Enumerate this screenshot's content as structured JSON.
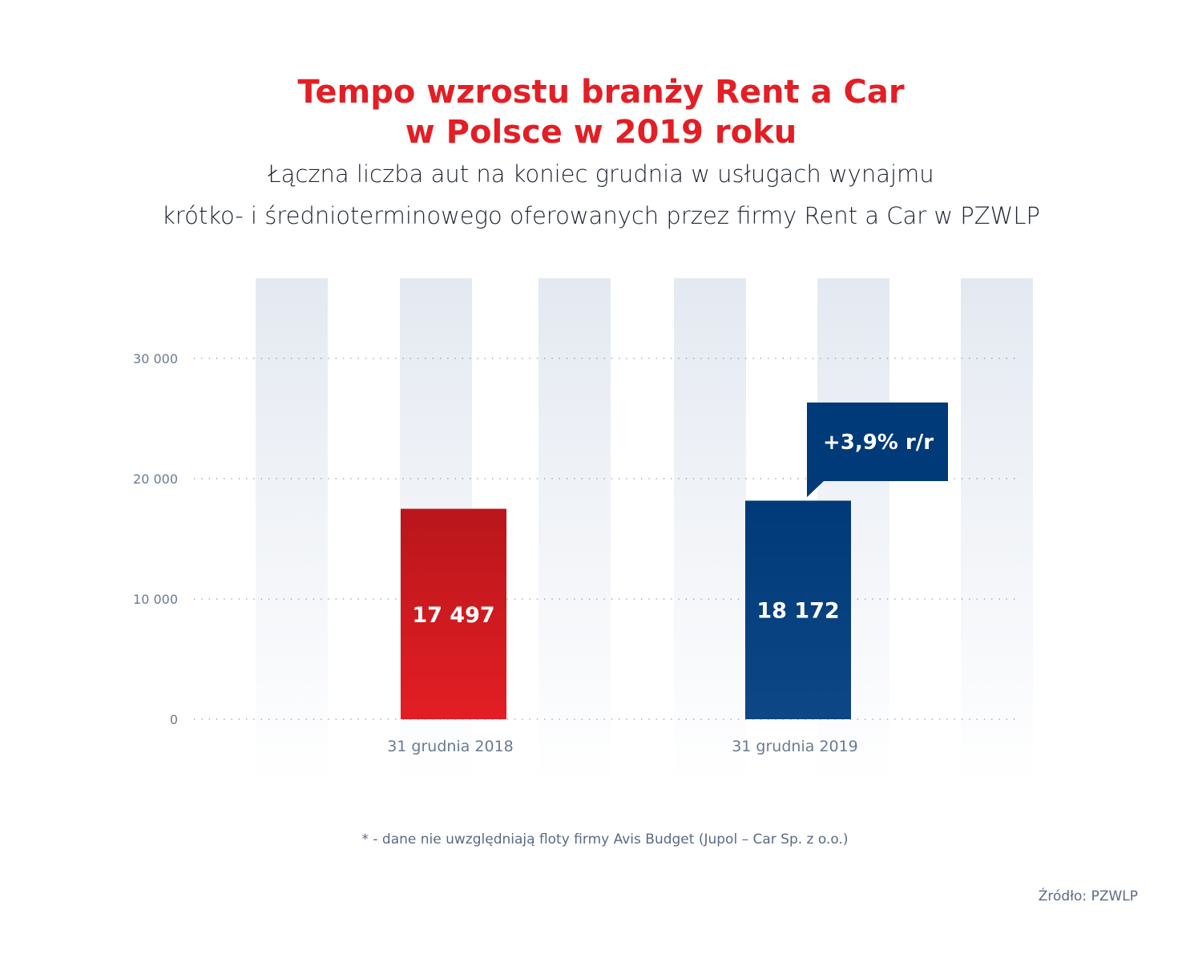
{
  "chart_data": {
    "type": "bar",
    "title_line1": "Tempo wzrostu branży Rent a Car",
    "title_line2": "w Polsce w 2019 roku",
    "subtitle_line1": "Łączna liczba aut na koniec grudnia w usługach wynajmu",
    "subtitle_line2": "krótko- i średnioterminowego oferowanych przez firmy Rent a Car w PZWLP",
    "categories": [
      "31 grudnia 2018",
      "31 grudnia 2019"
    ],
    "values": [
      17497,
      18172
    ],
    "value_labels": [
      "17 497",
      "18 172"
    ],
    "colors": [
      "#d71c22",
      "#003a78"
    ],
    "yticks": [
      0,
      10000,
      20000,
      30000
    ],
    "ytick_labels": [
      "0",
      "10 000",
      "20 000",
      "30 000"
    ],
    "ylim": [
      0,
      36500
    ],
    "grid": "dotted horizontal",
    "annotation": "+3,9% r/r",
    "annotation_color": "#003a78",
    "footnote": "* - dane nie uwzględniają floty firmy Avis Budget (Jupol – Car Sp. z o.o.)",
    "source": "Źródło: PZWLP"
  }
}
